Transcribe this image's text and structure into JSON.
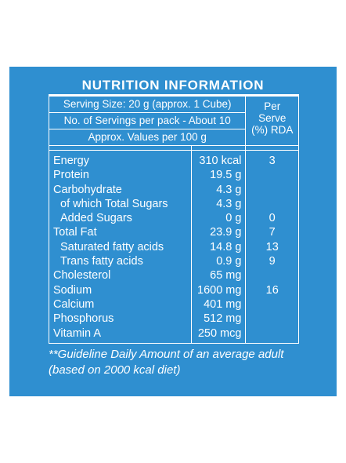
{
  "title": "NUTRITION INFORMATION",
  "header": {
    "serving_size": "Serving Size: 20 g (approx. 1 Cube)",
    "servings_per_pack": "No. of Servings per pack - About 10",
    "approx_values": "Approx. Values per 100 g",
    "per_serve": [
      "Per",
      "Serve",
      "(%) RDA"
    ]
  },
  "nutrients": [
    {
      "name": "Energy",
      "value": "310 kcal",
      "rda": "3"
    },
    {
      "name": "Protein",
      "value": "19.5 g",
      "rda": ""
    },
    {
      "name": "Carbohydrate",
      "value": "4.3 g",
      "rda": ""
    },
    {
      "name": "of which Total Sugars",
      "value": "4.3 g",
      "rda": ""
    },
    {
      "name": "Added Sugars",
      "value": "0 g",
      "rda": "0"
    },
    {
      "name": "Total Fat",
      "value": "23.9 g",
      "rda": "7"
    },
    {
      "name": "Saturated fatty acids",
      "value": "14.8 g",
      "rda": "13"
    },
    {
      "name": "Trans fatty acids",
      "value": "0.9 g",
      "rda": "9"
    },
    {
      "name": "Cholesterol",
      "value": "65 mg",
      "rda": ""
    },
    {
      "name": "Sodium",
      "value": "1600 mg",
      "rda": "16"
    },
    {
      "name": "Calcium",
      "value": "401 mg",
      "rda": ""
    },
    {
      "name": "Phosphorus",
      "value": "512 mg",
      "rda": ""
    },
    {
      "name": "Vitamin A",
      "value": "250 mcg",
      "rda": ""
    }
  ],
  "footnote": {
    "line1": "**Guideline Daily Amount of an average adult",
    "line2": "(based on 2000 kcal diet)"
  },
  "colors": {
    "panel_background": "#2f8fd0",
    "text": "#ffffff",
    "page_background": "#ffffff"
  }
}
